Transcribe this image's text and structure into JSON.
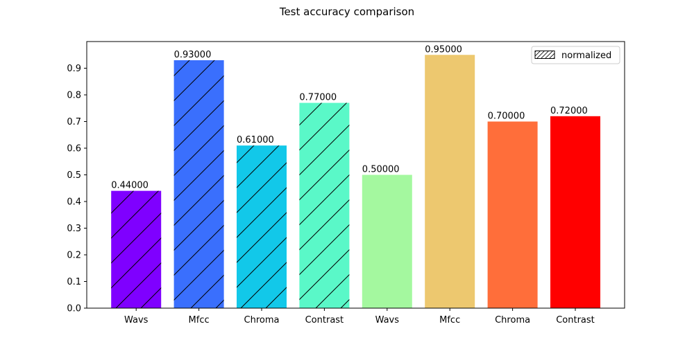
{
  "chart_data": {
    "type": "bar",
    "title": "Test accuracy comparison",
    "xlabel": "",
    "ylabel": "",
    "ylim": [
      0,
      1.0
    ],
    "yticks": [
      0.0,
      0.1,
      0.2,
      0.3,
      0.4,
      0.5,
      0.6,
      0.7,
      0.8,
      0.9
    ],
    "ytick_labels": [
      "0.0",
      "0.1",
      "0.2",
      "0.3",
      "0.4",
      "0.5",
      "0.6",
      "0.7",
      "0.8",
      "0.9"
    ],
    "grid": false,
    "legend": {
      "placement": "top-right",
      "entries": [
        {
          "label": "normalized",
          "hatch": "//"
        }
      ]
    },
    "bars": [
      {
        "category": "Wavs",
        "value": 0.44,
        "label": "0.44000",
        "color": "#7f00ff",
        "hatched": true
      },
      {
        "category": "Mfcc",
        "value": 0.93,
        "label": "0.93000",
        "color": "#3a6ffd",
        "hatched": true
      },
      {
        "category": "Chroma",
        "value": 0.61,
        "label": "0.61000",
        "color": "#12c8e9",
        "hatched": true
      },
      {
        "category": "Contrast",
        "value": 0.77,
        "label": "0.77000",
        "color": "#5af8c8",
        "hatched": true
      },
      {
        "category": "Wavs",
        "value": 0.5,
        "label": "0.50000",
        "color": "#a4f89f",
        "hatched": false
      },
      {
        "category": "Mfcc",
        "value": 0.95,
        "label": "0.95000",
        "color": "#edc86f",
        "hatched": false
      },
      {
        "category": "Chroma",
        "value": 0.7,
        "label": "0.70000",
        "color": "#ff6e3a",
        "hatched": false
      },
      {
        "category": "Contrast",
        "value": 0.72,
        "label": "0.72000",
        "color": "#ff0000",
        "hatched": false
      }
    ]
  }
}
